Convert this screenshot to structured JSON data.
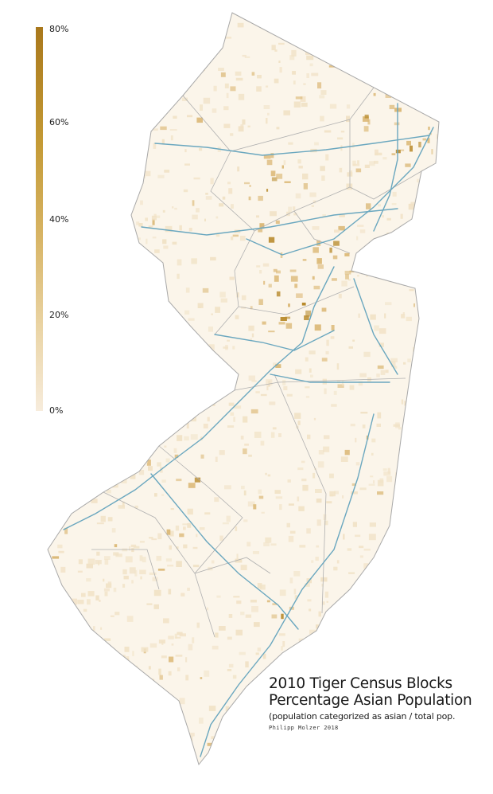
{
  "legend": {
    "ticks": [
      "80%",
      "60%",
      "40%",
      "20%",
      "0%"
    ],
    "stops": [
      "#a9781c",
      "#c49a35",
      "#d8b566",
      "#ead4a4",
      "#f7ecdc"
    ]
  },
  "title": {
    "line1": "2010 Tiger Census Blocks",
    "line2": "Percentage Asian Population",
    "subtitle": "(population categorized as asian / total pop.",
    "credit": "Philipp Molzer 2018"
  },
  "colors": {
    "outline": "#a8a8a8",
    "roads": "#6aa7bf",
    "low": "#f1e2c6",
    "mid": "#dcb978",
    "high": "#b88a2c"
  }
}
